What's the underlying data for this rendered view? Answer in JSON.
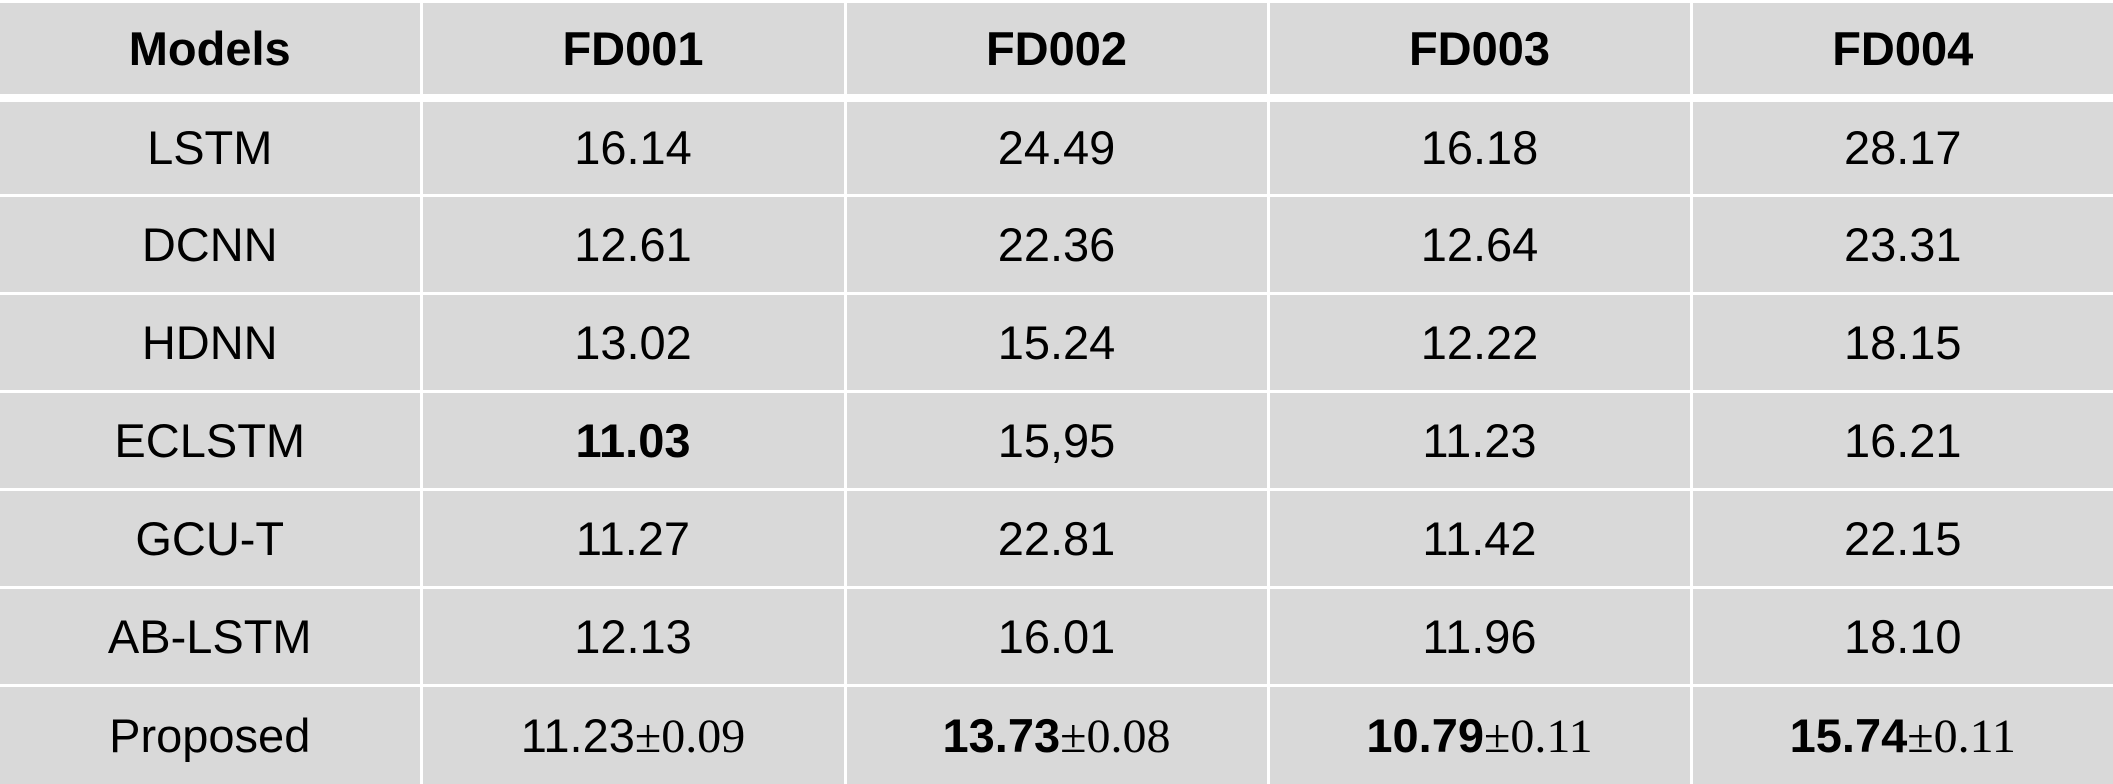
{
  "table": {
    "headers": [
      "Models",
      "FD001",
      "FD002",
      "FD003",
      "FD004"
    ],
    "rows": [
      {
        "model": "LSTM",
        "values": [
          "16.14",
          "24.49",
          "16.18",
          "28.17"
        ]
      },
      {
        "model": "DCNN",
        "values": [
          "12.61",
          "22.36",
          "12.64",
          "23.31"
        ]
      },
      {
        "model": "HDNN",
        "values": [
          "13.02",
          "15.24",
          "12.22",
          "18.15"
        ]
      },
      {
        "model": "ECLSTM",
        "values": [
          "11.03",
          "15,95",
          "11.23",
          "16.21"
        ]
      },
      {
        "model": "GCU-T",
        "values": [
          "11.27",
          "22.81",
          "11.42",
          "22.15"
        ]
      },
      {
        "model": "AB-LSTM",
        "values": [
          "12.13",
          "16.01",
          "11.96",
          "18.10"
        ]
      }
    ],
    "proposed": {
      "model": "Proposed",
      "cells": [
        {
          "mean": "11.23",
          "std": "±0.09"
        },
        {
          "mean": "13.73",
          "std": "±0.08"
        },
        {
          "mean": "10.79",
          "std": "±0.11"
        },
        {
          "mean": "15.74",
          "std": "±0.11"
        }
      ]
    }
  }
}
